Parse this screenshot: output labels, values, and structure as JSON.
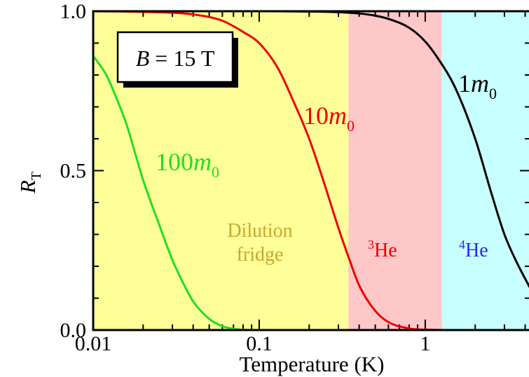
{
  "chart_data": {
    "type": "line",
    "x_scale": "log",
    "xlim": [
      0.01,
      4.3
    ],
    "ylim": [
      0,
      1
    ],
    "xlabel": "Temperature (K)",
    "ylabel": {
      "main": "R",
      "sub": "T"
    },
    "x_ticks": [
      {
        "value": 0.01,
        "label": "0.01"
      },
      {
        "value": 0.1,
        "label": "0.1"
      },
      {
        "value": 1,
        "label": "1"
      }
    ],
    "y_ticks": [
      {
        "value": 0.0,
        "label": "0.0"
      },
      {
        "value": 0.5,
        "label": "0.5"
      },
      {
        "value": 1.0,
        "label": "1.0"
      }
    ],
    "field_label": {
      "var": "B",
      "rest": " = 15 T"
    },
    "regions": [
      {
        "from": 0.01,
        "to": 0.345,
        "color": "#ffff99",
        "label_lines": [
          "Dilution",
          "fridge"
        ],
        "label_color": "#c8a830"
      },
      {
        "from": 0.345,
        "to": 1.26,
        "color": "#ffc8c8",
        "label_sup": "3",
        "label_main": "He",
        "label_color": "#ee0000"
      },
      {
        "from": 1.26,
        "to": 4.3,
        "color": "#c8ffff",
        "label_sup": "4",
        "label_main": "He",
        "label_color": "#2a2aee"
      }
    ],
    "series": [
      {
        "label_num": "1",
        "label_var": "m",
        "label_sub": "0",
        "color": "#000000",
        "x": [
          0.01,
          0.1,
          0.2,
          0.3,
          0.4,
          0.5,
          0.6,
          0.8,
          1.0,
          1.2,
          1.5,
          2.0,
          2.5,
          3.0,
          3.5,
          4.3
        ],
        "y": [
          1.0,
          1.0,
          0.999,
          0.997,
          0.993,
          0.986,
          0.976,
          0.948,
          0.905,
          0.85,
          0.765,
          0.6,
          0.43,
          0.3,
          0.22,
          0.13
        ]
      },
      {
        "label_num": "10",
        "label_var": "m",
        "label_sub": "0",
        "color": "#ee0000",
        "x": [
          0.01,
          0.02,
          0.04,
          0.06,
          0.08,
          0.1,
          0.13,
          0.16,
          0.2,
          0.25,
          0.3,
          0.35,
          0.4,
          0.5,
          0.6,
          0.8,
          1.0,
          1.5,
          4.3
        ],
        "y": [
          1.0,
          0.998,
          0.99,
          0.97,
          0.935,
          0.9,
          0.82,
          0.72,
          0.6,
          0.45,
          0.32,
          0.22,
          0.14,
          0.06,
          0.025,
          0.005,
          0.001,
          0.0,
          0.0
        ]
      },
      {
        "label_num": "100",
        "label_var": "m",
        "label_sub": "0",
        "color": "#22dd22",
        "x": [
          0.01,
          0.012,
          0.014,
          0.016,
          0.018,
          0.02,
          0.025,
          0.03,
          0.035,
          0.04,
          0.05,
          0.06,
          0.07,
          0.08,
          0.1,
          0.2,
          4.3
        ],
        "y": [
          0.86,
          0.8,
          0.72,
          0.64,
          0.55,
          0.47,
          0.33,
          0.22,
          0.145,
          0.09,
          0.035,
          0.012,
          0.004,
          0.001,
          0.0,
          0.0,
          0.0
        ]
      }
    ]
  }
}
